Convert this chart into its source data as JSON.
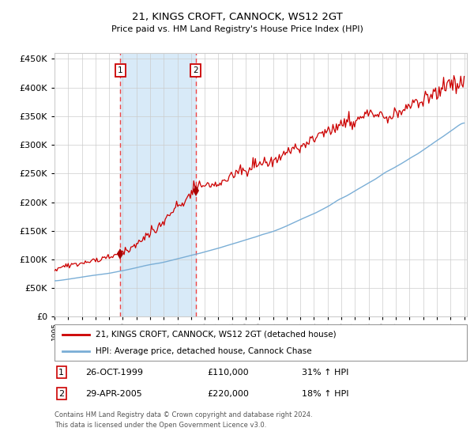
{
  "title": "21, KINGS CROFT, CANNOCK, WS12 2GT",
  "subtitle": "Price paid vs. HM Land Registry's House Price Index (HPI)",
  "legend_line1": "21, KINGS CROFT, CANNOCK, WS12 2GT (detached house)",
  "legend_line2": "HPI: Average price, detached house, Cannock Chase",
  "transaction1_date": "26-OCT-1999",
  "transaction1_price": 110000,
  "transaction1_pct": "31% ↑ HPI",
  "transaction2_date": "29-APR-2005",
  "transaction2_price": 220000,
  "transaction2_pct": "18% ↑ HPI",
  "footer1": "Contains HM Land Registry data © Crown copyright and database right 2024.",
  "footer2": "This data is licensed under the Open Government Licence v3.0.",
  "hpi_color": "#7aaed6",
  "price_color": "#cc0000",
  "marker_color": "#aa0000",
  "dashed_line_color": "#ee4444",
  "shade_color": "#d8eaf8",
  "grid_color": "#cccccc",
  "ylim": [
    0,
    460000
  ],
  "yticks": [
    0,
    50000,
    100000,
    150000,
    200000,
    250000,
    300000,
    350000,
    400000,
    450000
  ],
  "year_start": 1995,
  "year_end": 2025,
  "transaction1_year": 1999.82,
  "transaction2_year": 2005.33,
  "background_color": "#ffffff"
}
